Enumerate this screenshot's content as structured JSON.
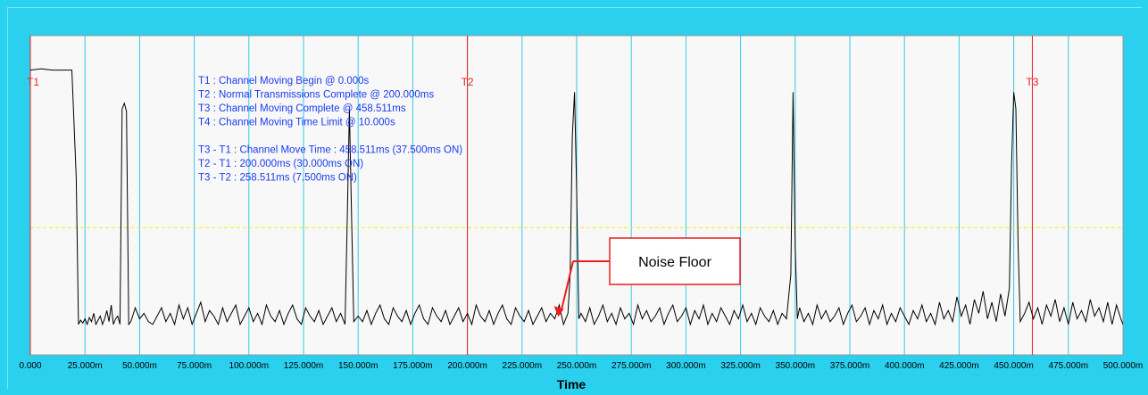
{
  "chart_data": {
    "type": "line",
    "title": "",
    "xlabel": "Time",
    "ylabel": "",
    "xlim": [
      0,
      500
    ],
    "x_unit": "ms",
    "x_tick_labels": [
      "0.000",
      "25.000m",
      "50.000m",
      "75.000m",
      "100.000m",
      "125.000m",
      "150.000m",
      "175.000m",
      "200.000m",
      "225.000m",
      "250.000m",
      "275.000m",
      "300.000m",
      "325.000m",
      "350.000m",
      "375.000m",
      "400.000m",
      "425.000m",
      "450.000m",
      "475.000m",
      "500.000m"
    ],
    "ylim": [
      0,
      100
    ],
    "threshold_level": 37,
    "markers": [
      {
        "label": "T1",
        "x": 0
      },
      {
        "label": "T2",
        "x": 200
      },
      {
        "label": "T3",
        "x": 458.511
      }
    ],
    "info_lines": [
      "T1 : Channel Moving Begin @ 0.000s",
      "T2 : Normal Transmissions Complete @ 200.000ms",
      "T3 : Channel Moving Complete @ 458.511ms",
      "T4 : Channel Moving Time Limit @ 10.000s",
      "",
      "T3 - T1 : Channel Move Time : 458.511ms (37.500ms ON)",
      "T2 - T1 : 200.000ms (30.000ms ON)",
      "T3 - T2 : 258.511ms (7.500ms ON)"
    ],
    "annotation": {
      "text": "Noise Floor",
      "x": 240,
      "y": 6
    },
    "series": [
      {
        "points": [
          [
            0,
            94
          ],
          [
            5,
            94.5
          ],
          [
            10,
            94
          ],
          [
            15,
            94
          ],
          [
            19,
            94
          ],
          [
            21,
            55
          ],
          [
            22,
            2
          ],
          [
            23,
            3.5
          ],
          [
            24,
            2.5
          ],
          [
            25,
            4
          ],
          [
            26,
            2
          ],
          [
            27,
            4.5
          ],
          [
            28,
            3
          ],
          [
            29,
            6
          ],
          [
            30,
            2
          ],
          [
            31,
            3.5
          ],
          [
            32,
            5
          ],
          [
            33,
            2
          ],
          [
            34,
            4
          ],
          [
            35,
            7
          ],
          [
            36,
            3
          ],
          [
            37,
            9
          ],
          [
            38,
            2
          ],
          [
            39,
            4
          ],
          [
            40,
            5
          ],
          [
            41,
            2
          ],
          [
            42,
            80
          ],
          [
            43,
            82
          ],
          [
            44,
            79
          ],
          [
            45,
            2
          ],
          [
            46,
            3
          ],
          [
            48,
            8
          ],
          [
            50,
            4
          ],
          [
            52,
            6
          ],
          [
            54,
            3
          ],
          [
            56,
            2
          ],
          [
            58,
            5
          ],
          [
            60,
            8
          ],
          [
            62,
            3
          ],
          [
            64,
            6
          ],
          [
            66,
            2
          ],
          [
            68,
            9
          ],
          [
            70,
            4
          ],
          [
            72,
            8
          ],
          [
            74,
            2
          ],
          [
            76,
            6
          ],
          [
            78,
            10
          ],
          [
            80,
            3
          ],
          [
            82,
            7
          ],
          [
            84,
            5
          ],
          [
            86,
            2
          ],
          [
            88,
            8
          ],
          [
            90,
            3
          ],
          [
            92,
            6
          ],
          [
            94,
            9
          ],
          [
            96,
            2
          ],
          [
            98,
            5
          ],
          [
            100,
            8
          ],
          [
            102,
            3
          ],
          [
            104,
            6
          ],
          [
            106,
            2
          ],
          [
            108,
            9
          ],
          [
            110,
            5
          ],
          [
            112,
            3
          ],
          [
            114,
            7
          ],
          [
            116,
            2
          ],
          [
            118,
            6
          ],
          [
            120,
            9
          ],
          [
            122,
            4
          ],
          [
            124,
            2
          ],
          [
            126,
            8
          ],
          [
            128,
            5
          ],
          [
            130,
            3
          ],
          [
            132,
            7
          ],
          [
            134,
            2
          ],
          [
            136,
            5
          ],
          [
            138,
            8
          ],
          [
            140,
            3
          ],
          [
            142,
            6
          ],
          [
            144,
            2
          ],
          [
            145,
            40
          ],
          [
            146,
            80
          ],
          [
            147,
            40
          ],
          [
            148,
            3
          ],
          [
            150,
            5
          ],
          [
            152,
            3
          ],
          [
            154,
            7
          ],
          [
            156,
            2
          ],
          [
            158,
            6
          ],
          [
            160,
            9
          ],
          [
            162,
            4
          ],
          [
            164,
            2
          ],
          [
            166,
            8
          ],
          [
            168,
            5
          ],
          [
            170,
            3
          ],
          [
            172,
            7
          ],
          [
            174,
            2
          ],
          [
            176,
            6
          ],
          [
            178,
            9
          ],
          [
            180,
            4
          ],
          [
            182,
            2
          ],
          [
            184,
            8
          ],
          [
            186,
            5
          ],
          [
            188,
            3
          ],
          [
            190,
            7
          ],
          [
            192,
            2
          ],
          [
            194,
            5
          ],
          [
            196,
            8
          ],
          [
            198,
            3
          ],
          [
            200,
            6
          ],
          [
            202,
            2
          ],
          [
            204,
            9
          ],
          [
            206,
            5
          ],
          [
            208,
            3
          ],
          [
            210,
            7
          ],
          [
            212,
            2
          ],
          [
            214,
            6
          ],
          [
            216,
            9
          ],
          [
            218,
            4
          ],
          [
            220,
            2
          ],
          [
            222,
            8
          ],
          [
            224,
            5
          ],
          [
            226,
            3
          ],
          [
            228,
            7
          ],
          [
            230,
            2
          ],
          [
            232,
            5
          ],
          [
            234,
            8
          ],
          [
            236,
            3
          ],
          [
            238,
            6
          ],
          [
            240,
            4
          ],
          [
            242,
            9
          ],
          [
            244,
            2
          ],
          [
            246,
            6
          ],
          [
            247,
            20
          ],
          [
            248,
            70
          ],
          [
            249,
            86
          ],
          [
            250,
            50
          ],
          [
            251,
            4
          ],
          [
            252,
            6
          ],
          [
            254,
            3
          ],
          [
            256,
            8
          ],
          [
            258,
            2
          ],
          [
            260,
            5
          ],
          [
            262,
            9
          ],
          [
            264,
            3
          ],
          [
            266,
            6
          ],
          [
            268,
            2
          ],
          [
            270,
            8
          ],
          [
            272,
            4
          ],
          [
            274,
            6
          ],
          [
            276,
            2
          ],
          [
            278,
            9
          ],
          [
            280,
            4
          ],
          [
            282,
            7
          ],
          [
            284,
            3
          ],
          [
            286,
            5
          ],
          [
            288,
            8
          ],
          [
            290,
            2
          ],
          [
            292,
            6
          ],
          [
            294,
            9
          ],
          [
            296,
            3
          ],
          [
            298,
            5
          ],
          [
            300,
            8
          ],
          [
            302,
            2
          ],
          [
            304,
            7
          ],
          [
            306,
            4
          ],
          [
            308,
            9
          ],
          [
            310,
            2
          ],
          [
            312,
            6
          ],
          [
            314,
            3
          ],
          [
            316,
            8
          ],
          [
            318,
            5
          ],
          [
            320,
            2
          ],
          [
            322,
            7
          ],
          [
            324,
            4
          ],
          [
            326,
            9
          ],
          [
            328,
            3
          ],
          [
            330,
            6
          ],
          [
            332,
            2
          ],
          [
            334,
            8
          ],
          [
            336,
            5
          ],
          [
            338,
            3
          ],
          [
            340,
            7
          ],
          [
            342,
            2
          ],
          [
            344,
            6
          ],
          [
            346,
            4
          ],
          [
            348,
            20
          ],
          [
            349,
            86
          ],
          [
            350,
            30
          ],
          [
            351,
            4
          ],
          [
            352,
            8
          ],
          [
            354,
            3
          ],
          [
            356,
            6
          ],
          [
            358,
            2
          ],
          [
            360,
            9
          ],
          [
            362,
            4
          ],
          [
            364,
            7
          ],
          [
            366,
            3
          ],
          [
            368,
            5
          ],
          [
            370,
            8
          ],
          [
            372,
            2
          ],
          [
            374,
            6
          ],
          [
            376,
            9
          ],
          [
            378,
            3
          ],
          [
            380,
            5
          ],
          [
            382,
            8
          ],
          [
            384,
            2
          ],
          [
            386,
            7
          ],
          [
            388,
            4
          ],
          [
            390,
            9
          ],
          [
            392,
            2
          ],
          [
            394,
            6
          ],
          [
            396,
            3
          ],
          [
            398,
            8
          ],
          [
            400,
            5
          ],
          [
            402,
            2
          ],
          [
            404,
            7
          ],
          [
            406,
            4
          ],
          [
            408,
            9
          ],
          [
            410,
            3
          ],
          [
            412,
            6
          ],
          [
            414,
            2
          ],
          [
            416,
            10
          ],
          [
            418,
            4
          ],
          [
            420,
            7
          ],
          [
            422,
            3
          ],
          [
            424,
            12
          ],
          [
            426,
            5
          ],
          [
            428,
            9
          ],
          [
            430,
            2
          ],
          [
            432,
            11
          ],
          [
            434,
            6
          ],
          [
            436,
            14
          ],
          [
            438,
            4
          ],
          [
            440,
            10
          ],
          [
            442,
            3
          ],
          [
            444,
            13
          ],
          [
            446,
            5
          ],
          [
            448,
            15
          ],
          [
            449,
            60
          ],
          [
            450,
            86
          ],
          [
            451,
            80
          ],
          [
            452,
            30
          ],
          [
            453,
            3
          ],
          [
            455,
            6
          ],
          [
            457,
            10
          ],
          [
            459,
            4
          ],
          [
            461,
            8
          ],
          [
            463,
            2
          ],
          [
            465,
            9
          ],
          [
            467,
            5
          ],
          [
            469,
            11
          ],
          [
            471,
            3
          ],
          [
            473,
            8
          ],
          [
            475,
            2
          ],
          [
            477,
            10
          ],
          [
            479,
            4
          ],
          [
            481,
            7
          ],
          [
            483,
            3
          ],
          [
            485,
            11
          ],
          [
            487,
            5
          ],
          [
            489,
            8
          ],
          [
            491,
            3
          ],
          [
            493,
            10
          ],
          [
            495,
            2
          ],
          [
            497,
            9
          ],
          [
            499,
            4
          ],
          [
            500,
            2
          ]
        ]
      }
    ]
  }
}
